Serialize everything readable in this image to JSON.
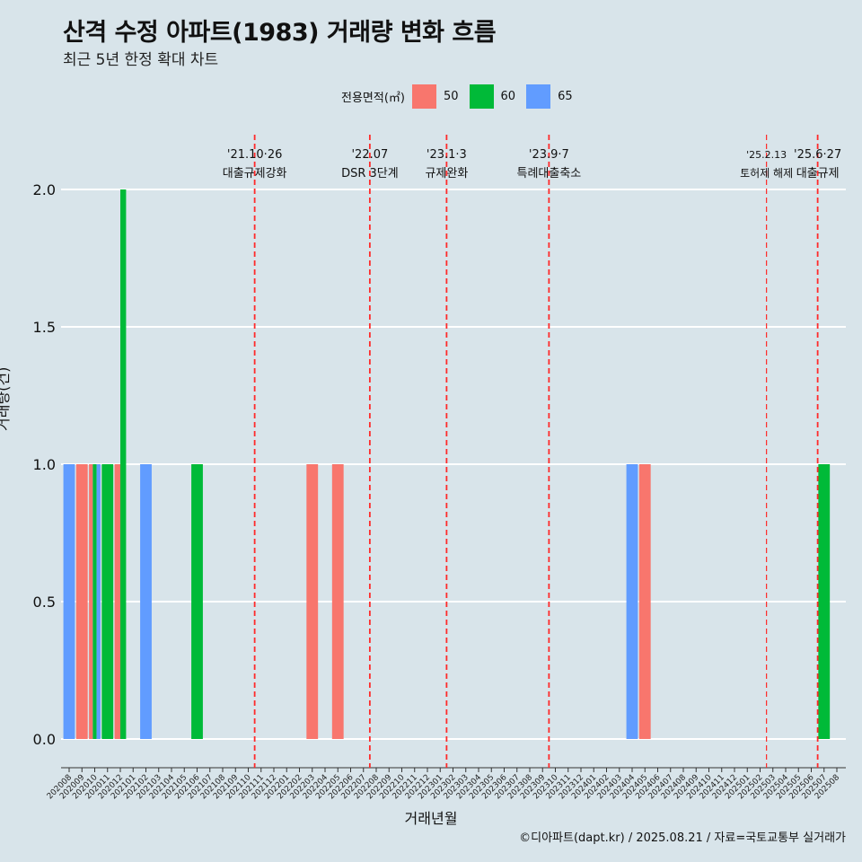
{
  "title": "산격 수정 아파트(1983) 거래량 변화 흐름",
  "subtitle": "최근 5년 한정 확대 차트",
  "legend": {
    "title": "전용면적(㎡)",
    "items": [
      {
        "label": "50",
        "color": "#f8766d"
      },
      {
        "label": "60",
        "color": "#00ba38"
      },
      {
        "label": "65",
        "color": "#619cff"
      }
    ]
  },
  "caption": "©디아파트(dapt.kr) / 2025.08.21 / 자료=국토교통부 실거래가",
  "chart_data": {
    "type": "bar",
    "xlabel": "거래년월",
    "ylabel": "거래량(건)",
    "ylim": [
      0,
      2.0
    ],
    "yticks": [
      0.0,
      0.5,
      1.0,
      1.5,
      2.0
    ],
    "categories": [
      "202008",
      "202009",
      "202010",
      "202011",
      "202012",
      "202101",
      "202102",
      "202103",
      "202104",
      "202105",
      "202106",
      "202107",
      "202108",
      "202109",
      "202110",
      "202111",
      "202112",
      "202201",
      "202202",
      "202203",
      "202204",
      "202205",
      "202206",
      "202207",
      "202208",
      "202209",
      "202210",
      "202211",
      "202212",
      "202301",
      "202302",
      "202303",
      "202304",
      "202305",
      "202306",
      "202307",
      "202308",
      "202309",
      "202310",
      "202311",
      "202312",
      "202401",
      "202402",
      "202403",
      "202404",
      "202405",
      "202406",
      "202407",
      "202408",
      "202409",
      "202410",
      "202411",
      "202412",
      "202501",
      "202502",
      "202503",
      "202504",
      "202505",
      "202506",
      "202507",
      "202508"
    ],
    "series": [
      {
        "name": "50",
        "color": "#f8766d",
        "points": [
          [
            "202009",
            1
          ],
          [
            "202010",
            1
          ],
          [
            "202012",
            1
          ],
          [
            "202203",
            1
          ],
          [
            "202205",
            1
          ],
          [
            "202405",
            1
          ]
        ]
      },
      {
        "name": "60",
        "color": "#00ba38",
        "points": [
          [
            "202010",
            1
          ],
          [
            "202011",
            1
          ],
          [
            "202012",
            2
          ],
          [
            "202106",
            1
          ],
          [
            "202507",
            1
          ]
        ]
      },
      {
        "name": "65",
        "color": "#619cff",
        "points": [
          [
            "202008",
            1
          ],
          [
            "202010",
            1
          ],
          [
            "202102",
            1
          ],
          [
            "202404",
            1
          ]
        ]
      }
    ],
    "annotations": [
      {
        "date": "'21.10·26",
        "label": "대출규제강화",
        "x": "202110"
      },
      {
        "date": "'22.07",
        "label": "DSR 3단계",
        "x": "202207"
      },
      {
        "date": "'23.1·3",
        "label": "규제완화",
        "x": "202301"
      },
      {
        "date": "'23.9·7",
        "label": "특례대출축소",
        "x": "202309"
      },
      {
        "date": "'25.2.13",
        "label": "토허제 해제",
        "x": "202502"
      },
      {
        "date": "'25.6·27",
        "label": "대출규제",
        "x": "202506"
      }
    ]
  }
}
